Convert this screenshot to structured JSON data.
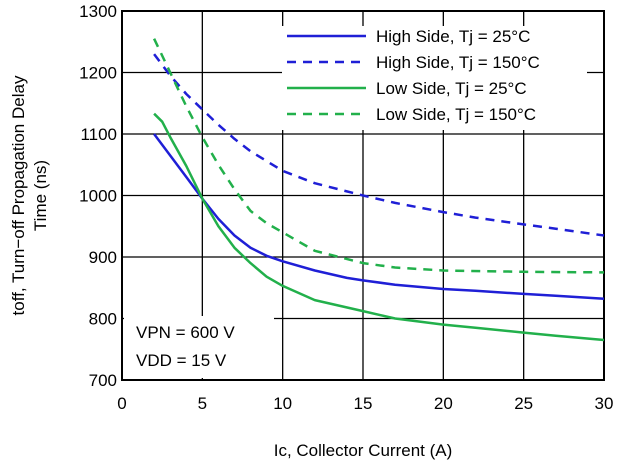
{
  "chart_data": {
    "type": "line",
    "xlabel": "Ic, Collector Current (A)",
    "ylabel_lines": [
      "toff, Turn−off Propagation Delay",
      "Time (ns)"
    ],
    "xlim": [
      0,
      30
    ],
    "ylim": [
      700,
      1300
    ],
    "xticks": [
      0,
      5,
      10,
      15,
      20,
      25,
      30
    ],
    "yticks": [
      700,
      800,
      900,
      1000,
      1100,
      1200,
      1300
    ],
    "grid": true,
    "legend_position": "top-right",
    "annotations": [
      "VPN = 600 V",
      "VDD = 15 V"
    ],
    "series": [
      {
        "name": "High Side, Tj = 25°C",
        "color": "#1f1fd6",
        "dash": "solid",
        "x": [
          2,
          3,
          4,
          5,
          6,
          7,
          8,
          9,
          10,
          12,
          14,
          15,
          17,
          20,
          22,
          25,
          27,
          30
        ],
        "y": [
          1100,
          1065,
          1030,
          995,
          962,
          935,
          915,
          902,
          893,
          878,
          866,
          862,
          855,
          848,
          845,
          840,
          837,
          832
        ]
      },
      {
        "name": "High Side, Tj = 150°C",
        "color": "#1f1fd6",
        "dash": "dashed",
        "x": [
          2,
          3,
          4,
          5,
          6,
          7,
          8,
          10,
          12,
          15,
          17,
          20,
          22,
          25,
          27,
          30
        ],
        "y": [
          1230,
          1195,
          1165,
          1140,
          1115,
          1092,
          1072,
          1040,
          1020,
          1000,
          988,
          973,
          964,
          953,
          946,
          935
        ]
      },
      {
        "name": "Low Side, Tj = 25°C",
        "color": "#22b04b",
        "dash": "solid",
        "x": [
          2,
          2.5,
          3,
          4,
          5,
          6,
          7,
          8,
          9,
          10,
          12,
          15,
          17,
          20,
          22,
          25,
          27,
          30
        ],
        "y": [
          1133,
          1120,
          1095,
          1048,
          995,
          950,
          915,
          890,
          868,
          853,
          830,
          812,
          800,
          790,
          785,
          777,
          772,
          765
        ]
      },
      {
        "name": "Low Side, Tj = 150°C",
        "color": "#22b04b",
        "dash": "dashed",
        "x": [
          2,
          3,
          4,
          5,
          6,
          7,
          8,
          9,
          10,
          11,
          12,
          15,
          17,
          20,
          25,
          30
        ],
        "y": [
          1255,
          1200,
          1145,
          1095,
          1050,
          1010,
          975,
          955,
          940,
          925,
          910,
          890,
          883,
          878,
          876,
          875
        ]
      }
    ]
  }
}
